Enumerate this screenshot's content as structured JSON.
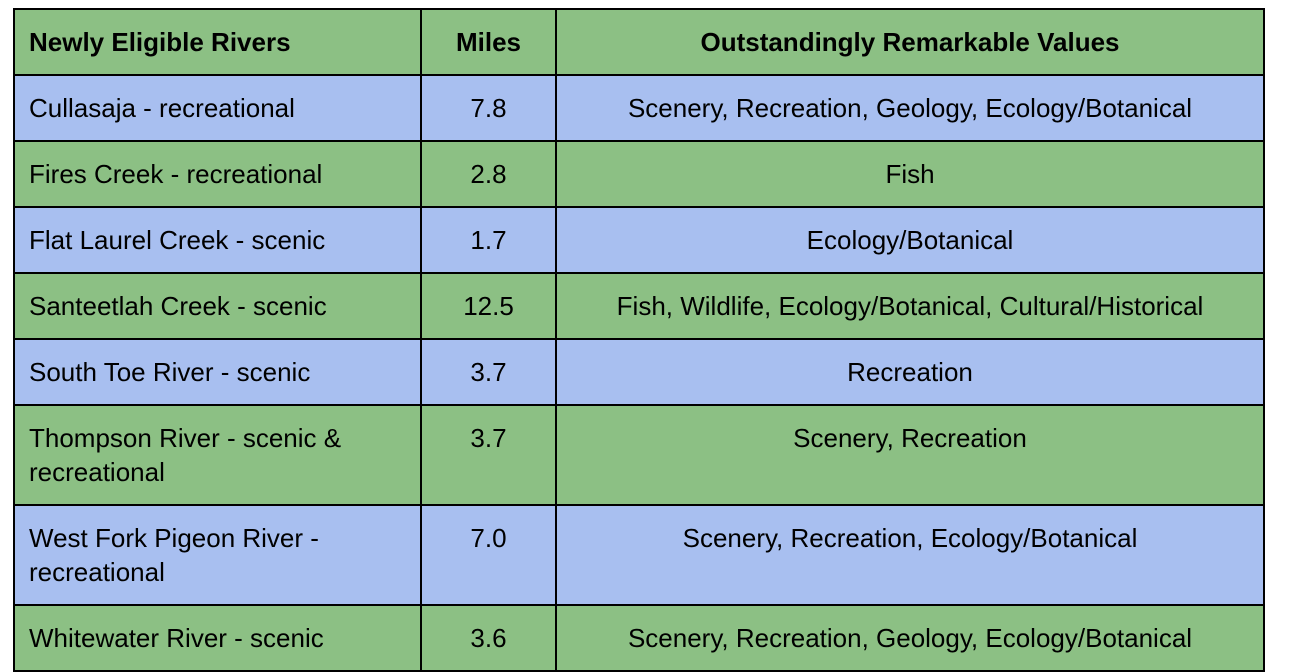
{
  "colors": {
    "green_row": "#8cc084",
    "blue_row": "#a8bff0",
    "border": "#000000"
  },
  "table": {
    "headers": {
      "river": "Newly Eligible Rivers",
      "miles": "Miles",
      "values": "Outstandingly Remarkable Values"
    },
    "rows": [
      {
        "river": "Cullasaja - recreational",
        "miles": "7.8",
        "values": "Scenery, Recreation, Geology, Ecology/Botanical",
        "color": "blue"
      },
      {
        "river": "Fires Creek - recreational",
        "miles": "2.8",
        "values": "Fish",
        "color": "green"
      },
      {
        "river": "Flat Laurel Creek - scenic",
        "miles": "1.7",
        "values": "Ecology/Botanical",
        "color": "blue"
      },
      {
        "river": "Santeetlah Creek - scenic",
        "miles": "12.5",
        "values": "Fish, Wildlife, Ecology/Botanical, Cultural/Historical",
        "color": "green"
      },
      {
        "river": "South Toe River - scenic",
        "miles": "3.7",
        "values": "Recreation",
        "color": "blue"
      },
      {
        "river": "Thompson River - scenic & recreational",
        "miles": "3.7",
        "values": "Scenery, Recreation",
        "color": "green"
      },
      {
        "river": "West Fork Pigeon River - recreational",
        "miles": "7.0",
        "values": "Scenery, Recreation, Ecology/Botanical",
        "color": "blue"
      },
      {
        "river": "Whitewater River - scenic",
        "miles": "3.6",
        "values": "Scenery, Recreation, Geology, Ecology/Botanical",
        "color": "green"
      }
    ]
  }
}
